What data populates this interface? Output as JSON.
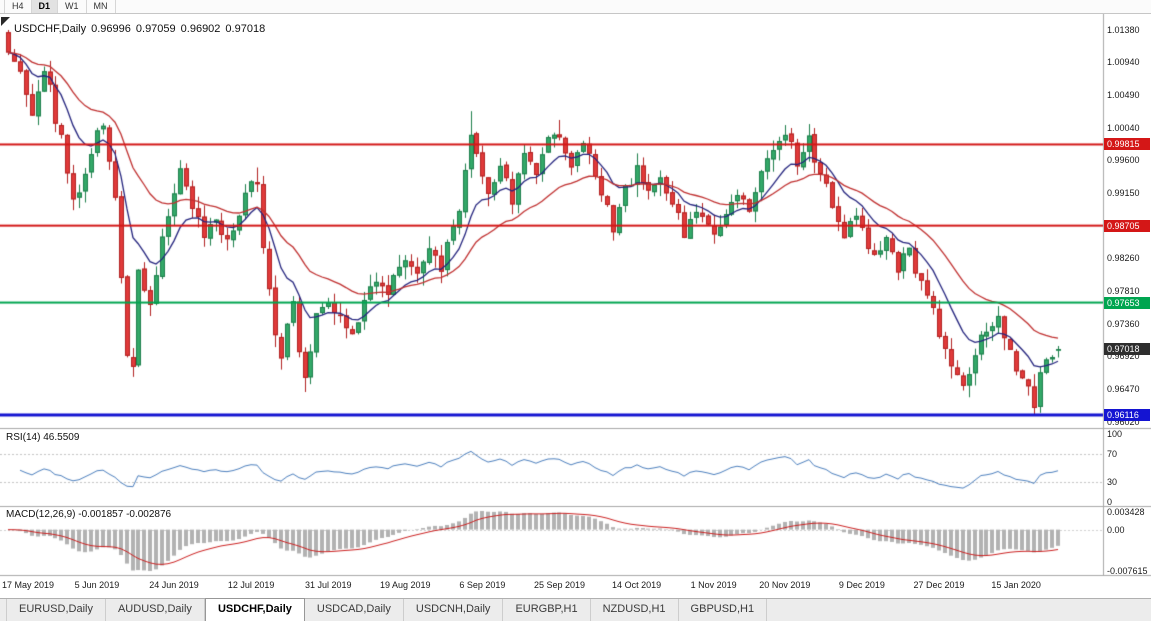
{
  "toolbar": {
    "periods": [
      {
        "label": "H4",
        "active": false
      },
      {
        "label": "D1",
        "active": true
      },
      {
        "label": "W1",
        "active": false
      },
      {
        "label": "MN",
        "active": false
      }
    ]
  },
  "chart": {
    "symbol_period": "USDCHF,Daily",
    "ohlc": {
      "open": "0.96996",
      "high": "0.97059",
      "low": "0.96902",
      "close": "0.97018"
    },
    "price_axis": [
      "1.01380",
      "1.00940",
      "1.00490",
      "1.00040",
      "0.99600",
      "0.99150",
      "0.98700",
      "0.98260",
      "0.97810",
      "0.97360",
      "0.96920",
      "0.96470",
      "0.96020"
    ],
    "levels": [
      {
        "price": 0.99815,
        "label": "0.99815",
        "color": "#d41717",
        "width": 2,
        "name": "resistance-line-1"
      },
      {
        "price": 0.98705,
        "label": "0.98705",
        "color": "#d41717",
        "width": 2,
        "name": "resistance-line-2"
      },
      {
        "price": 0.97653,
        "label": "0.97653",
        "color": "#00a550",
        "width": 2,
        "name": "support-line-mid"
      },
      {
        "price": 0.96116,
        "label": "0.96116",
        "color": "#1414d2",
        "width": 3,
        "name": "support-line-low"
      }
    ],
    "current_price": {
      "price": 0.97018,
      "label": "0.97018",
      "color": "#2e2e2e"
    },
    "dates": [
      {
        "label": "17 May 2019",
        "index": 3
      },
      {
        "label": "5 Jun 2019",
        "index": 15
      },
      {
        "label": "24 Jun 2019",
        "index": 28
      },
      {
        "label": "12 Jul 2019",
        "index": 41
      },
      {
        "label": "31 Jul 2019",
        "index": 54
      },
      {
        "label": "19 Aug 2019",
        "index": 67
      },
      {
        "label": "6 Sep 2019",
        "index": 80
      },
      {
        "label": "25 Sep 2019",
        "index": 93
      },
      {
        "label": "14 Oct 2019",
        "index": 106
      },
      {
        "label": "1 Nov 2019",
        "index": 119
      },
      {
        "label": "20 Nov 2019",
        "index": 131
      },
      {
        "label": "9 Dec 2019",
        "index": 144
      },
      {
        "label": "27 Dec 2019",
        "index": 157
      },
      {
        "label": "15 Jan 2020",
        "index": 170
      }
    ]
  },
  "rsi": {
    "label": "RSI(14) 46.5509",
    "axis": [
      {
        "label": "100",
        "value": 100
      },
      {
        "label": "70",
        "value": 70
      },
      {
        "label": "30",
        "value": 30
      },
      {
        "label": "0",
        "value": 0
      }
    ],
    "level_lines": [
      70,
      30
    ],
    "line_color": "#4c7fbe"
  },
  "macd": {
    "label": "MACD(12,26,9) -0.001857 -0.002876",
    "axis_max": {
      "label": "0.003428",
      "value": 0.003428
    },
    "axis_zero": {
      "label": "0.00",
      "value": 0
    },
    "axis_min": {
      "label": "-0.007615",
      "value": -0.007615
    },
    "histogram_color": "#b2b2b2",
    "signal_color": "#cc2020"
  },
  "tabs": [
    {
      "label": "EURUSD,Daily",
      "active": false
    },
    {
      "label": "AUDUSD,Daily",
      "active": false
    },
    {
      "label": "USDCHF,Daily",
      "active": true
    },
    {
      "label": "USDCAD,Daily",
      "active": false
    },
    {
      "label": "USDCNH,Daily",
      "active": false
    },
    {
      "label": "EURGBP,H1",
      "active": false
    },
    {
      "label": "NZDUSD,H1",
      "active": false
    },
    {
      "label": "GBPUSD,H1",
      "active": false
    }
  ],
  "chart_data": {
    "type": "candlestick",
    "symbol": "USDCHF",
    "timeframe": "Daily",
    "candle_count": 178,
    "price_range": {
      "top": 1.0138,
      "bottom": 0.9602
    },
    "first_open": 1.0135,
    "last_candle": {
      "open": 0.96996,
      "high": 0.97059,
      "low": 0.96902,
      "close": 0.97018
    },
    "close_anchors": [
      [
        0,
        1.0105
      ],
      [
        2,
        1.0075
      ],
      [
        4,
        1.003
      ],
      [
        6,
        1.0085
      ],
      [
        8,
        1.002
      ],
      [
        10,
        0.995
      ],
      [
        11,
        0.99
      ],
      [
        13,
        0.995
      ],
      [
        15,
        0.999
      ],
      [
        16,
        1.0
      ],
      [
        18,
        0.99
      ],
      [
        20,
        0.969
      ],
      [
        21,
        0.968
      ],
      [
        22,
        0.98
      ],
      [
        24,
        0.9765
      ],
      [
        26,
        0.985
      ],
      [
        28,
        0.992
      ],
      [
        29,
        0.994
      ],
      [
        31,
        0.99
      ],
      [
        33,
        0.9855
      ],
      [
        35,
        0.988
      ],
      [
        37,
        0.985
      ],
      [
        39,
        0.989
      ],
      [
        41,
        0.993
      ],
      [
        42,
        0.9935
      ],
      [
        43,
        0.984
      ],
      [
        45,
        0.972
      ],
      [
        46,
        0.9695
      ],
      [
        48,
        0.977
      ],
      [
        49,
        0.969
      ],
      [
        50,
        0.9655
      ],
      [
        52,
        0.974
      ],
      [
        54,
        0.9775
      ],
      [
        56,
        0.9745
      ],
      [
        58,
        0.972
      ],
      [
        60,
        0.977
      ],
      [
        62,
        0.98
      ],
      [
        64,
        0.978
      ],
      [
        67,
        0.982
      ],
      [
        69,
        0.9795
      ],
      [
        71,
        0.984
      ],
      [
        73,
        0.9815
      ],
      [
        75,
        0.986
      ],
      [
        76,
        0.99
      ],
      [
        78,
        1.0005
      ],
      [
        79,
        0.9975
      ],
      [
        81,
        0.992
      ],
      [
        83,
        0.995
      ],
      [
        85,
        0.991
      ],
      [
        87,
        0.9975
      ],
      [
        89,
        0.994
      ],
      [
        91,
        0.9985
      ],
      [
        93,
        1.0
      ],
      [
        95,
        0.9955
      ],
      [
        97,
        0.9985
      ],
      [
        99,
        0.994
      ],
      [
        101,
        0.9895
      ],
      [
        102,
        0.987
      ],
      [
        104,
        0.992
      ],
      [
        106,
        0.995
      ],
      [
        108,
        0.9915
      ],
      [
        110,
        0.9945
      ],
      [
        112,
        0.99
      ],
      [
        114,
        0.986
      ],
      [
        116,
        0.9885
      ],
      [
        119,
        0.9855
      ],
      [
        121,
        0.989
      ],
      [
        123,
        0.992
      ],
      [
        125,
        0.9895
      ],
      [
        127,
        0.9945
      ],
      [
        129,
        0.9975
      ],
      [
        131,
        0.9995
      ],
      [
        133,
        0.996
      ],
      [
        135,
        0.9985
      ],
      [
        137,
        0.994
      ],
      [
        139,
        0.9895
      ],
      [
        141,
        0.986
      ],
      [
        143,
        0.9885
      ],
      [
        144,
        0.986
      ],
      [
        146,
        0.983
      ],
      [
        148,
        0.985
      ],
      [
        150,
        0.9815
      ],
      [
        152,
        0.9835
      ],
      [
        154,
        0.979
      ],
      [
        156,
        0.975
      ],
      [
        157,
        0.972
      ],
      [
        159,
        0.968
      ],
      [
        161,
        0.9655
      ],
      [
        163,
        0.97
      ],
      [
        165,
        0.973
      ],
      [
        167,
        0.9745
      ],
      [
        169,
        0.9705
      ],
      [
        170,
        0.968
      ],
      [
        171,
        0.9665
      ],
      [
        172,
        0.964
      ],
      [
        173,
        0.9615
      ],
      [
        174,
        0.966
      ],
      [
        175,
        0.9685
      ],
      [
        176,
        0.97
      ],
      [
        177,
        0.97018
      ]
    ],
    "wick_extremes": [
      {
        "i": 0,
        "high": 1.0138
      },
      {
        "i": 29,
        "high": 0.996
      },
      {
        "i": 42,
        "high": 0.995
      },
      {
        "i": 50,
        "low": 0.9643
      },
      {
        "i": 78,
        "high": 1.0027
      },
      {
        "i": 93,
        "high": 1.0015
      },
      {
        "i": 102,
        "low": 0.985
      },
      {
        "i": 131,
        "high": 1.0008
      },
      {
        "i": 161,
        "low": 0.9645
      },
      {
        "i": 173,
        "low": 0.9611
      }
    ],
    "moving_averages": [
      {
        "type": "ema",
        "period": 10,
        "color": "#24247e"
      },
      {
        "type": "ema",
        "period": 25,
        "color": "#c03030"
      }
    ],
    "bull_color": "#33a868",
    "bull_edge": "#1e7f4c",
    "bear_color": "#e03a3a",
    "bear_edge": "#b22222",
    "indicators": {
      "rsi_period": 14,
      "macd": [
        12,
        26,
        9
      ]
    }
  }
}
